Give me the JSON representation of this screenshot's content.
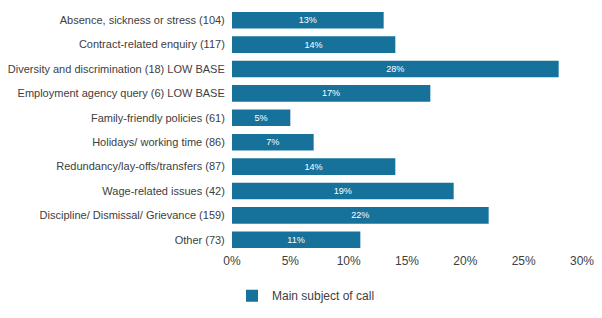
{
  "chart_data": {
    "type": "bar",
    "orientation": "horizontal",
    "categories": [
      "Absence, sickness or stress (104)",
      "Contract-related enquiry (117)",
      "Diversity and discrimination (18) LOW BASE",
      "Employment agency query (6) LOW BASE",
      "Family-friendly policies (61)",
      "Holidays/ working time (86)",
      "Redundancy/lay-offs/transfers (87)",
      "Wage-related issues (42)",
      "Discipline/ Dismissal/ Grievance (159)",
      "Other (73)"
    ],
    "series": [
      {
        "name": "Main subject of call",
        "color": "#17729b",
        "values": [
          13,
          14,
          28,
          17,
          5,
          7,
          14,
          19,
          22,
          11
        ],
        "value_labels": [
          "13%",
          "14%",
          "28%",
          "17%",
          "5%",
          "7%",
          "14%",
          "19%",
          "22%",
          "11%"
        ]
      }
    ],
    "xlim": [
      0,
      30
    ],
    "xticks": [
      {
        "value": 0,
        "label": "0%"
      },
      {
        "value": 5,
        "label": "5%"
      },
      {
        "value": 10,
        "label": "10%"
      },
      {
        "value": 15,
        "label": "15%"
      },
      {
        "value": 20,
        "label": "20%"
      },
      {
        "value": 25,
        "label": "25%"
      },
      {
        "value": 30,
        "label": "30%"
      }
    ],
    "grid": false,
    "legend": "bottom",
    "data_labels": true
  }
}
